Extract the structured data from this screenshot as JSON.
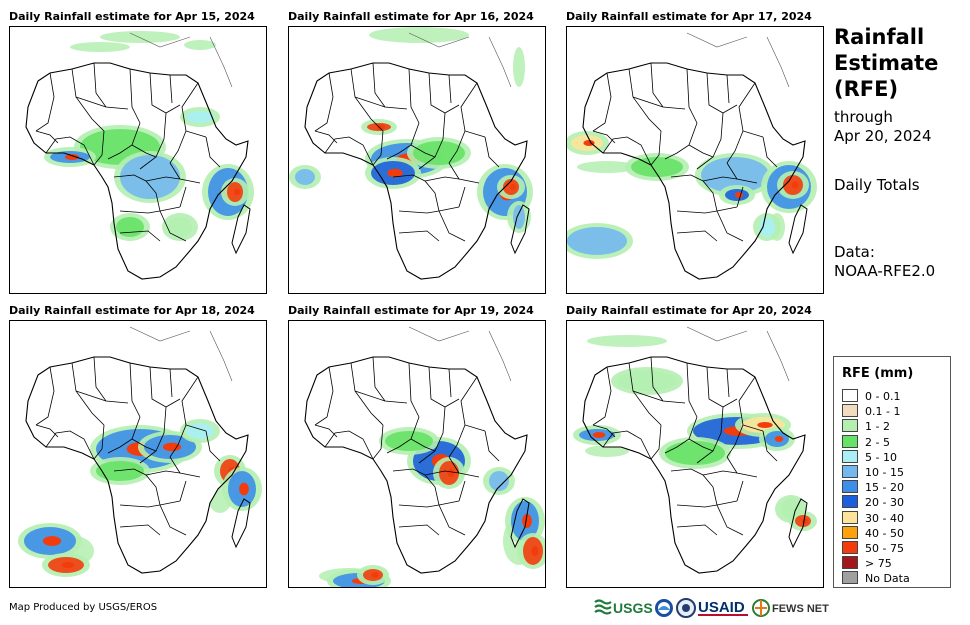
{
  "panels": [
    {
      "title": "Daily Rainfall estimate for Apr 15, 2024"
    },
    {
      "title": "Daily Rainfall estimate for Apr 16, 2024"
    },
    {
      "title": "Daily Rainfall estimate for Apr 17, 2024"
    },
    {
      "title": "Daily Rainfall estimate for Apr 18, 2024"
    },
    {
      "title": "Daily Rainfall estimate for Apr 19, 2024"
    },
    {
      "title": "Daily Rainfall estimate for Apr 20, 2024"
    }
  ],
  "side": {
    "title_line1": "Rainfall",
    "title_line2": "Estimate",
    "title_line3": "(RFE)",
    "through_label": "through",
    "through_date": "Apr 20, 2024",
    "totals_label": "Daily Totals",
    "data_label": "Data:",
    "data_source": "NOAA-RFE2.0"
  },
  "legend": {
    "title": "RFE (mm)",
    "items": [
      {
        "label": "0 - 0.1",
        "color": "#ffffff"
      },
      {
        "label": "0.1 - 1",
        "color": "#f2dcc0"
      },
      {
        "label": "1 - 2",
        "color": "#b4efb0"
      },
      {
        "label": "2 - 5",
        "color": "#66e266"
      },
      {
        "label": "5 - 10",
        "color": "#a9eff5"
      },
      {
        "label": "10 - 15",
        "color": "#74b8f0"
      },
      {
        "label": "15 - 20",
        "color": "#3c8ee8"
      },
      {
        "label": "20 - 30",
        "color": "#1c5fdc"
      },
      {
        "label": "30 - 40",
        "color": "#fde49a"
      },
      {
        "label": "40 - 50",
        "color": "#fba20c"
      },
      {
        "label": "50 - 75",
        "color": "#f33c0c"
      },
      {
        "label": "> 75",
        "color": "#a2181a"
      },
      {
        "label": "No Data",
        "color": "#a0a0a0"
      }
    ]
  },
  "footer": {
    "credit": "Map Produced by USGS/EROS"
  },
  "logos": {
    "usgs": "USGS",
    "usaid": "USAID",
    "fews": "FEWS NET"
  }
}
